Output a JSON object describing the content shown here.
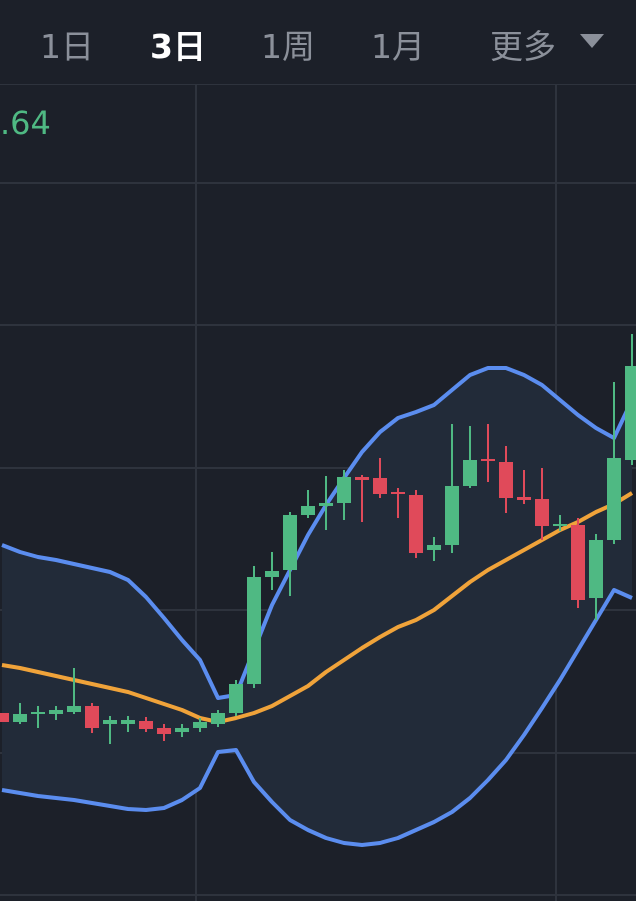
{
  "tabs": [
    "1日",
    "3日",
    "1周",
    "1月",
    "更多"
  ],
  "active_tab": 1,
  "chart_data": {
    "type": "candlestick",
    "price_label": ".64",
    "ylim": [
      0,
      815
    ],
    "up_color": "#4fb983",
    "down_color": "#e04a5a",
    "open": [
      187,
      178,
      186,
      186,
      188,
      194,
      176,
      176,
      179,
      172,
      168,
      172,
      176,
      187,
      216,
      323,
      330,
      385,
      394,
      397,
      423,
      422,
      408,
      405,
      350,
      355,
      414,
      441,
      438,
      403,
      401,
      374,
      375,
      302,
      360,
      440
    ],
    "close": [
      178,
      186,
      188,
      190,
      194,
      172,
      180,
      180,
      171,
      166,
      172,
      178,
      187,
      216,
      323,
      329,
      385,
      394,
      397,
      423,
      420,
      406,
      406,
      347,
      355,
      414,
      440,
      439,
      402,
      400,
      374,
      376,
      300,
      360,
      442,
      534
    ],
    "high": [
      187,
      197,
      194,
      194,
      232,
      197,
      184,
      184,
      183,
      176,
      176,
      182,
      190,
      220,
      334,
      348,
      388,
      410,
      424,
      430,
      425,
      442,
      412,
      410,
      363,
      476,
      474,
      476,
      454,
      430,
      432,
      385,
      382,
      366,
      518,
      566
    ],
    "low": [
      178,
      176,
      172,
      180,
      186,
      167,
      156,
      168,
      168,
      159,
      163,
      168,
      173,
      184,
      212,
      310,
      304,
      382,
      370,
      380,
      378,
      402,
      382,
      342,
      339,
      347,
      412,
      418,
      387,
      396,
      360,
      369,
      292,
      280,
      356,
      435
    ],
    "upper": {
      "color": "#5b8def",
      "values": [
        355,
        348,
        343,
        340,
        336,
        332,
        328,
        320,
        303,
        282,
        260,
        240,
        202,
        205,
        250,
        295,
        330,
        365,
        395,
        422,
        448,
        468,
        482,
        488,
        495,
        510,
        525,
        532,
        532,
        525,
        515,
        500,
        485,
        472,
        462,
        500
      ]
    },
    "middle": {
      "color": "#f0a33a",
      "values": [
        235,
        232,
        228,
        224,
        220,
        216,
        212,
        208,
        202,
        196,
        190,
        182,
        178,
        182,
        187,
        194,
        204,
        214,
        228,
        240,
        252,
        263,
        273,
        280,
        290,
        304,
        318,
        330,
        340,
        350,
        360,
        370,
        378,
        388,
        396,
        407
      ]
    },
    "lower": {
      "color": "#5b8def",
      "values": [
        110,
        107,
        104,
        102,
        100,
        97,
        94,
        91,
        90,
        92,
        100,
        112,
        148,
        150,
        118,
        98,
        80,
        70,
        62,
        57,
        55,
        57,
        62,
        70,
        78,
        88,
        102,
        120,
        140,
        165,
        192,
        220,
        250,
        280,
        310,
        302
      ]
    }
  }
}
